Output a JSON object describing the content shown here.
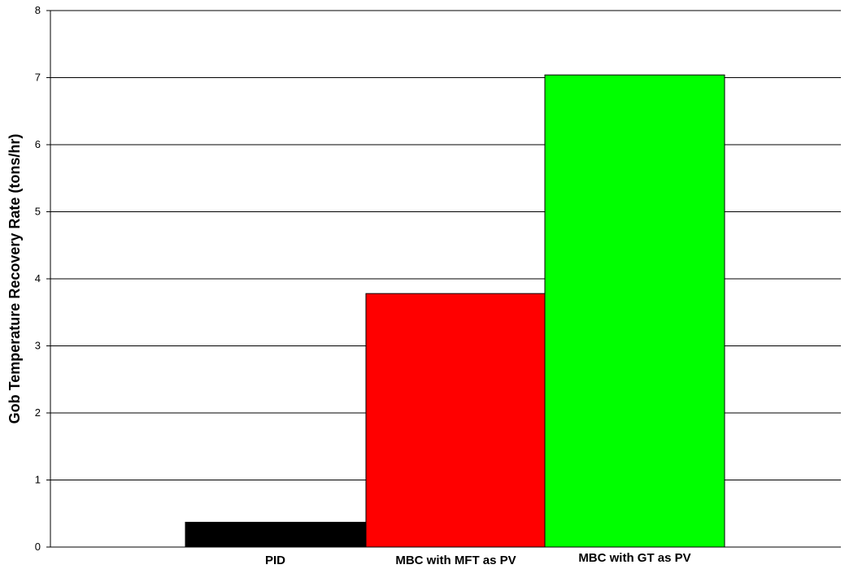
{
  "chart_data": {
    "type": "bar",
    "title": "",
    "xlabel": "",
    "ylabel": "Gob Temperature Recovery Rate (tons/hr)",
    "categories": [
      "PID",
      "MBC with MFT as PV",
      "MBC with GT as PV"
    ],
    "values": [
      0.37,
      3.78,
      7.04
    ],
    "colors": [
      "#000000",
      "#ff0000",
      "#00ff00"
    ],
    "ylim": [
      0,
      8
    ],
    "yticks": [
      "0",
      "1",
      "2",
      "3",
      "4",
      "5",
      "6",
      "7",
      "8"
    ],
    "grid": true,
    "legend": "none"
  }
}
